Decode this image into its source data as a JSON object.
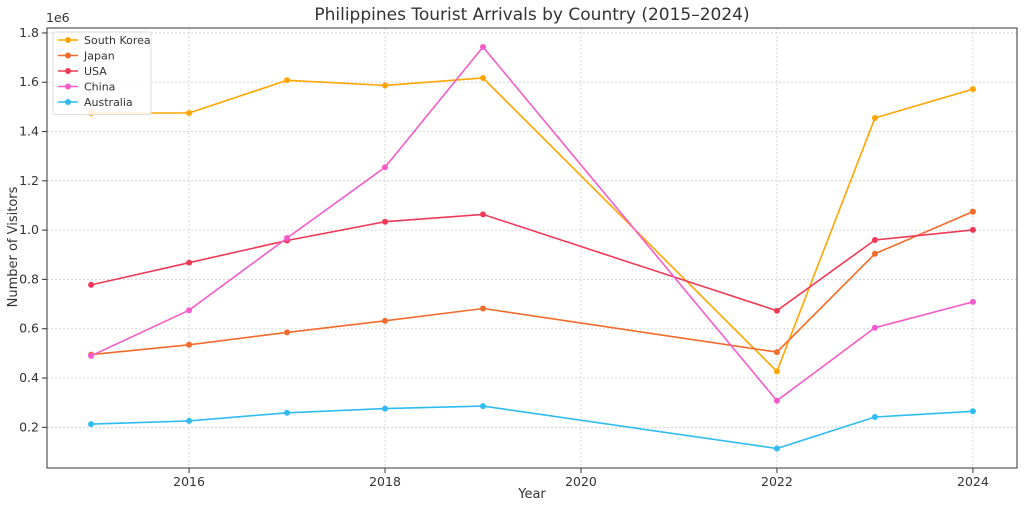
{
  "chart_data": {
    "type": "line",
    "title": "Philippines Tourist Arrivals by Country (2015–2024)",
    "xlabel": "Year",
    "ylabel": "Number of Visitors",
    "y_multiplier_label": "1e6",
    "x": [
      2015,
      2016,
      2017,
      2018,
      2019,
      2022,
      2023,
      2024
    ],
    "xlim": [
      2014.55,
      2024.45
    ],
    "ylim": [
      35000,
      1820000
    ],
    "x_ticks": [
      2016,
      2018,
      2020,
      2022,
      2024
    ],
    "y_ticks": [
      200000,
      400000,
      600000,
      800000,
      1000000,
      1200000,
      1400000,
      1600000,
      1800000
    ],
    "y_tick_labels": [
      "0.2",
      "0.4",
      "0.6",
      "0.8",
      "1.0",
      "1.2",
      "1.4",
      "1.6",
      "1.8"
    ],
    "grid": true,
    "legend_position": "top-left",
    "series": [
      {
        "name": "South Korea",
        "color": "#FFA500",
        "values": [
          1475000,
          1475000,
          1608000,
          1587000,
          1617000,
          427000,
          1455000,
          1572000
        ]
      },
      {
        "name": "Japan",
        "color": "#F26B2B",
        "values": [
          495000,
          535000,
          585000,
          632000,
          682000,
          505000,
          904000,
          1075000
        ]
      },
      {
        "name": "USA",
        "color": "#EE3A57",
        "values": [
          778000,
          868000,
          958000,
          1034000,
          1064000,
          673000,
          960000,
          1001000
        ]
      },
      {
        "name": "China",
        "color": "#F55BCA",
        "values": [
          490000,
          675000,
          968000,
          1255000,
          1743000,
          308000,
          604000,
          709000
        ]
      },
      {
        "name": "Australia",
        "color": "#2EBCF2",
        "values": [
          213000,
          226000,
          259000,
          276000,
          286000,
          114000,
          242000,
          265000
        ]
      }
    ]
  }
}
